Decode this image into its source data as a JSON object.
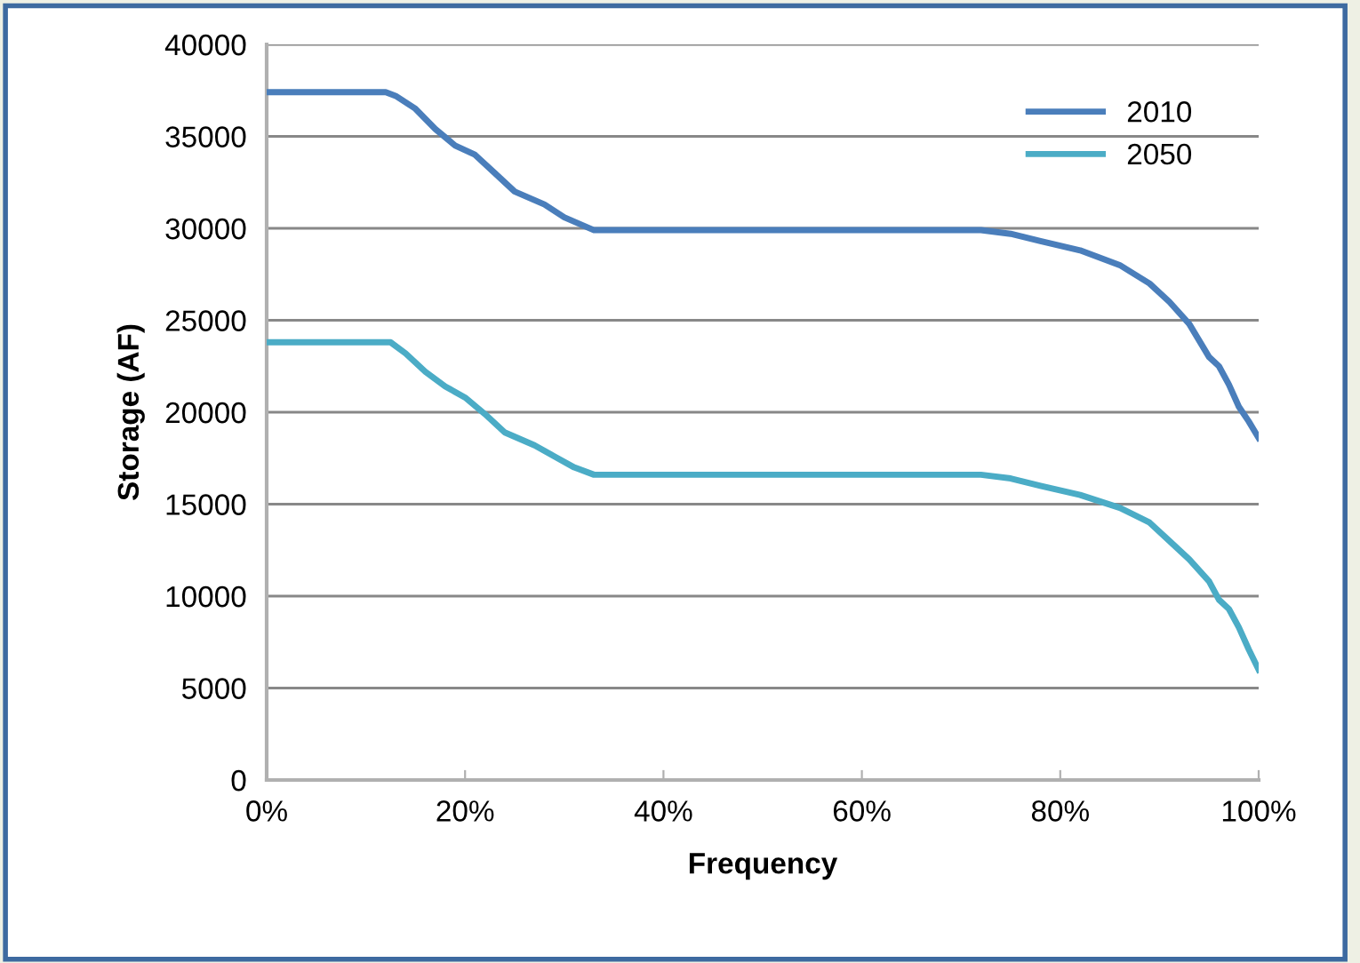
{
  "chart_data": {
    "type": "line",
    "xlabel": "Frequency",
    "ylabel": "Storage (AF)",
    "series": [
      {
        "name": "2010",
        "color": "#4a7ebb",
        "x": [
          0,
          0.12,
          0.13,
          0.15,
          0.17,
          0.19,
          0.21,
          0.23,
          0.25,
          0.28,
          0.3,
          0.33,
          0.72,
          0.75,
          0.78,
          0.82,
          0.86,
          0.89,
          0.91,
          0.93,
          0.95,
          0.96,
          0.97,
          0.98,
          0.99,
          1.0
        ],
        "values": [
          37400,
          37400,
          37200,
          36500,
          35400,
          34500,
          34000,
          33000,
          32000,
          31300,
          30600,
          29900,
          29900,
          29700,
          29300,
          28800,
          28000,
          27000,
          26000,
          24800,
          23000,
          22500,
          21500,
          20300,
          19500,
          18600
        ]
      },
      {
        "name": "2050",
        "color": "#4bacc6",
        "x": [
          0,
          0.125,
          0.14,
          0.16,
          0.18,
          0.2,
          0.22,
          0.24,
          0.27,
          0.29,
          0.31,
          0.33,
          0.72,
          0.75,
          0.78,
          0.82,
          0.86,
          0.89,
          0.91,
          0.93,
          0.95,
          0.96,
          0.97,
          0.98,
          0.99,
          1.0
        ],
        "values": [
          23800,
          23800,
          23200,
          22200,
          21400,
          20800,
          19900,
          18900,
          18200,
          17600,
          17000,
          16600,
          16600,
          16400,
          16000,
          15500,
          14800,
          14000,
          13000,
          12000,
          10800,
          9800,
          9300,
          8300,
          7100,
          6000
        ]
      }
    ],
    "xlim": [
      0,
      1
    ],
    "xticks": [
      {
        "value": 0,
        "label": "0%"
      },
      {
        "value": 0.2,
        "label": "20%"
      },
      {
        "value": 0.4,
        "label": "40%"
      },
      {
        "value": 0.6,
        "label": "60%"
      },
      {
        "value": 0.8,
        "label": "80%"
      },
      {
        "value": 1.0,
        "label": "100%"
      }
    ],
    "ylim": [
      0,
      40000
    ],
    "yticks": [
      0,
      5000,
      10000,
      15000,
      20000,
      25000,
      30000,
      35000,
      40000
    ],
    "grid": "y",
    "legend": "top right",
    "marker": "none",
    "line_style": "solid"
  }
}
